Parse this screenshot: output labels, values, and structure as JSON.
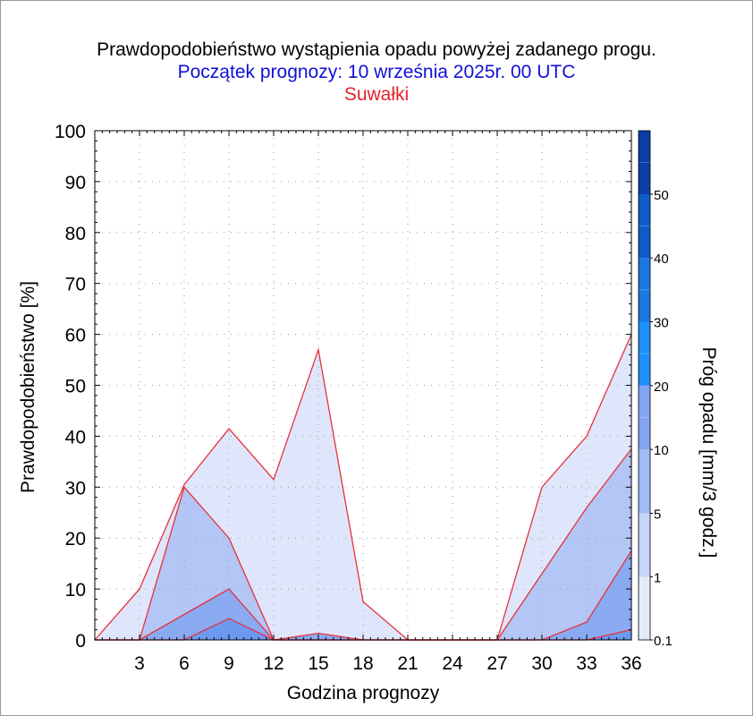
{
  "chart_data": {
    "type": "area",
    "title": "Prawdopodobieństwo wystąpienia opadu powyżej zadanego progu.",
    "subtitle": "Początek prognozy: 10 września 2025r. 00 UTC",
    "location": "Suwałki",
    "xlabel": "Godzina prognozy",
    "ylabel": "Prawdopodobieństwo [%]",
    "colorbar_label": "Próg opadu [mm/3 godz.]",
    "x": [
      0,
      3,
      6,
      9,
      12,
      15,
      18,
      21,
      24,
      27,
      30,
      33,
      36
    ],
    "x_tick_labels": [
      "3",
      "6",
      "9",
      "12",
      "15",
      "18",
      "21",
      "24",
      "27",
      "30",
      "33",
      "36"
    ],
    "x_tick_values": [
      3,
      6,
      9,
      12,
      15,
      18,
      21,
      24,
      27,
      30,
      33,
      36
    ],
    "y_tick_labels": [
      "0",
      "10",
      "20",
      "30",
      "40",
      "50",
      "60",
      "70",
      "80",
      "90",
      "100"
    ],
    "y_tick_values": [
      0,
      10,
      20,
      30,
      40,
      50,
      60,
      70,
      80,
      90,
      100
    ],
    "xlim": [
      0,
      36
    ],
    "ylim": [
      0,
      100
    ],
    "grid": true,
    "series": [
      {
        "threshold": "0.1",
        "color": "#dfe6fb",
        "values": [
          0,
          10,
          30.5,
          41.5,
          31.5,
          57,
          7.5,
          0,
          0,
          0,
          30,
          40,
          60
        ]
      },
      {
        "threshold": "1",
        "color": "#b3c6f5",
        "values": [
          0,
          0,
          30,
          20,
          0,
          0,
          0,
          0,
          0,
          0,
          13,
          26,
          37.5
        ]
      },
      {
        "threshold": "5",
        "color": "#8aaaf2",
        "values": [
          0,
          0,
          5,
          10,
          0,
          1.3,
          0,
          0,
          0,
          0,
          0,
          3.5,
          17.5
        ]
      },
      {
        "threshold": "10",
        "color": "#6c9af0",
        "values": [
          0,
          0,
          0,
          4.2,
          0,
          0,
          0,
          0,
          0,
          0,
          0,
          0,
          2
        ]
      }
    ],
    "line_color": "#e8303a",
    "colorbar": {
      "labels": [
        "0.1",
        "1",
        "5",
        "10",
        "20",
        "30",
        "40",
        "50"
      ],
      "colors": [
        "#e6ebfb",
        "#c6d4f7",
        "#a2bbf4",
        "#82a4f1",
        "#1e90ff",
        "#1a78e0",
        "#0f5cc8",
        "#0a3ea8"
      ]
    }
  }
}
